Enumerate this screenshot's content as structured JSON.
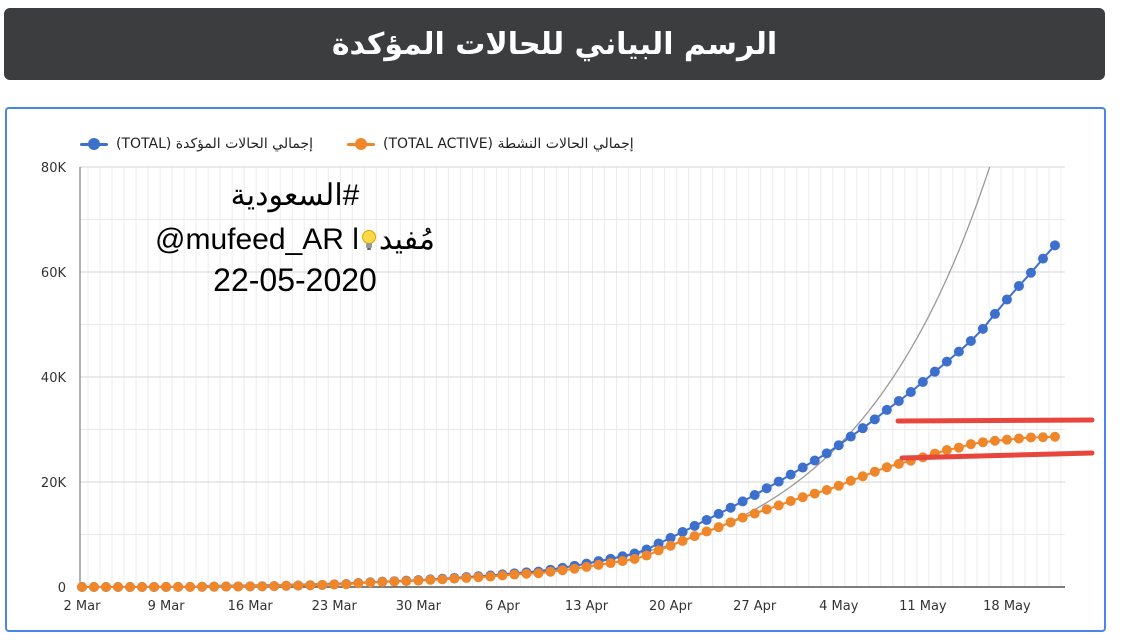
{
  "header": {
    "title": "الرسم البياني للحالات المؤكدة"
  },
  "annotation": {
    "hashtag": "#السعودية",
    "handle_left": "@mufeed_AR l",
    "handle_right": "مُفيد",
    "date": "22-05-2020"
  },
  "colors": {
    "total": "#3d6fcc",
    "active": "#f0862a",
    "exponential": "#9a9a9a",
    "plateau_lines": "#e8453c",
    "title_bg": "#3b3d3e",
    "frame": "#4a86e8"
  },
  "chart_data": {
    "type": "line",
    "title": "",
    "xlabel": "",
    "ylabel": "",
    "ylim": [
      0,
      80000
    ],
    "yticks": [
      0,
      20000,
      40000,
      60000,
      80000
    ],
    "ytick_labels": [
      "0",
      "20K",
      "40K",
      "60K",
      "80K"
    ],
    "xtick_labels": [
      "2 Mar",
      "9 Mar",
      "16 Mar",
      "23 Mar",
      "30 Mar",
      "6 Apr",
      "13 Apr",
      "20 Apr",
      "27 Apr",
      "4 May",
      "11 May",
      "18 May"
    ],
    "x_dates": [
      "2020-03-02",
      "2020-03-03",
      "2020-03-04",
      "2020-03-05",
      "2020-03-06",
      "2020-03-07",
      "2020-03-08",
      "2020-03-09",
      "2020-03-10",
      "2020-03-11",
      "2020-03-12",
      "2020-03-13",
      "2020-03-14",
      "2020-03-15",
      "2020-03-16",
      "2020-03-17",
      "2020-03-18",
      "2020-03-19",
      "2020-03-20",
      "2020-03-21",
      "2020-03-22",
      "2020-03-23",
      "2020-03-24",
      "2020-03-25",
      "2020-03-26",
      "2020-03-27",
      "2020-03-28",
      "2020-03-29",
      "2020-03-30",
      "2020-03-31",
      "2020-04-01",
      "2020-04-02",
      "2020-04-03",
      "2020-04-04",
      "2020-04-05",
      "2020-04-06",
      "2020-04-07",
      "2020-04-08",
      "2020-04-09",
      "2020-04-10",
      "2020-04-11",
      "2020-04-12",
      "2020-04-13",
      "2020-04-14",
      "2020-04-15",
      "2020-04-16",
      "2020-04-17",
      "2020-04-18",
      "2020-04-19",
      "2020-04-20",
      "2020-04-21",
      "2020-04-22",
      "2020-04-23",
      "2020-04-24",
      "2020-04-25",
      "2020-04-26",
      "2020-04-27",
      "2020-04-28",
      "2020-04-29",
      "2020-04-30",
      "2020-05-01",
      "2020-05-02",
      "2020-05-03",
      "2020-05-04",
      "2020-05-05",
      "2020-05-06",
      "2020-05-07",
      "2020-05-08",
      "2020-05-09",
      "2020-05-10",
      "2020-05-11",
      "2020-05-12",
      "2020-05-13",
      "2020-05-14",
      "2020-05-15",
      "2020-05-16",
      "2020-05-17",
      "2020-05-18",
      "2020-05-19",
      "2020-05-20",
      "2020-05-21",
      "2020-05-22"
    ],
    "series": [
      {
        "name": "إجمالي الحالات المؤكدة (TOTAL)",
        "color": "#3d6fcc",
        "values": [
          1,
          1,
          5,
          5,
          5,
          5,
          11,
          15,
          20,
          21,
          45,
          62,
          86,
          103,
          118,
          133,
          171,
          238,
          274,
          344,
          392,
          511,
          562,
          767,
          900,
          1012,
          1104,
          1203,
          1299,
          1453,
          1563,
          1720,
          1885,
          2039,
          2179,
          2402,
          2605,
          2795,
          2932,
          3287,
          3651,
          4033,
          4462,
          4934,
          5369,
          5862,
          6380,
          7142,
          8274,
          9362,
          10484,
          11631,
          12772,
          13930,
          15102,
          16299,
          17522,
          18811,
          20077,
          21402,
          22753,
          24097,
          25459,
          27011,
          28656,
          30251,
          31938,
          33731,
          35432,
          37136,
          39048,
          41014,
          42925,
          44830,
          46869,
          49176,
          52016,
          54752,
          57345,
          59854,
          62545,
          65077
        ]
      },
      {
        "name": "إجمالي الحالات النشطة (TOTAL ACTIVE)",
        "color": "#f0862a",
        "values": [
          1,
          1,
          5,
          5,
          5,
          5,
          11,
          15,
          20,
          21,
          45,
          62,
          86,
          103,
          115,
          130,
          165,
          232,
          266,
          334,
          376,
          490,
          529,
          719,
          848,
          954,
          1039,
          1127,
          1215,
          1357,
          1456,
          1592,
          1729,
          1870,
          1994,
          2187,
          2375,
          2527,
          2617,
          2911,
          3196,
          3488,
          3826,
          4205,
          4566,
          4942,
          5350,
          5989,
          6978,
          7860,
          8776,
          9691,
          10579,
          11397,
          12319,
          13220,
          13991,
          14795,
          15551,
          16372,
          17113,
          17793,
          18473,
          19280,
          20233,
          21090,
          21962,
          22811,
          23457,
          24060,
          24706,
          25407,
          26099,
          26540,
          27204,
          27577,
          27862,
          28066,
          28289,
          28486,
          28521,
          28619
        ]
      }
    ],
    "exponential_trendline": true,
    "grid": true,
    "legend": "top-left"
  }
}
